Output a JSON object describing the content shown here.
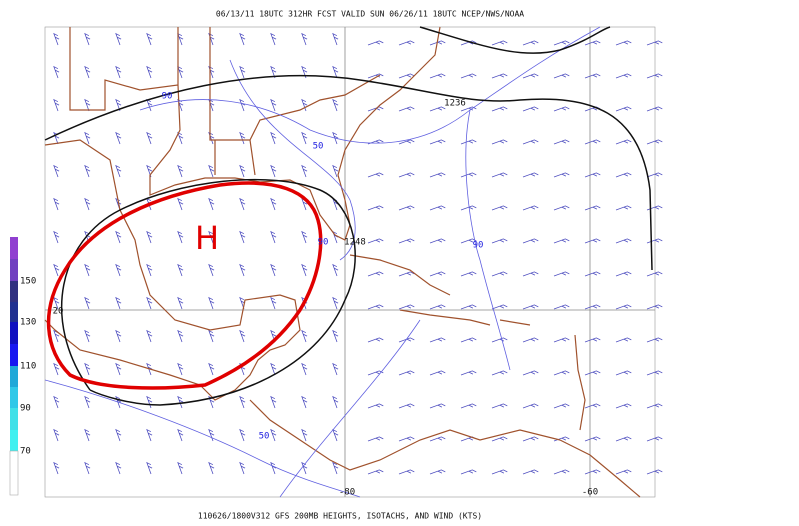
{
  "header": "06/13/11 18UTC  312HR  FCST VALID SUN 06/26/11 18UTC  NCEP/NWS/NOAA",
  "footer": "110626/1800V312 GFS 200MB HEIGHTS, ISOTACHS, AND WIND (KTS)",
  "colorbar": {
    "labels": [
      "150",
      "130",
      "110",
      "90",
      "70"
    ]
  },
  "annotation": "H",
  "contour_labels": {
    "height": [
      "1236",
      "1248"
    ],
    "isotach": [
      "90",
      "50",
      "90",
      "90",
      "50"
    ]
  },
  "grid_labels": {
    "latitude": "20",
    "longitude": [
      "-80",
      "-60"
    ]
  }
}
